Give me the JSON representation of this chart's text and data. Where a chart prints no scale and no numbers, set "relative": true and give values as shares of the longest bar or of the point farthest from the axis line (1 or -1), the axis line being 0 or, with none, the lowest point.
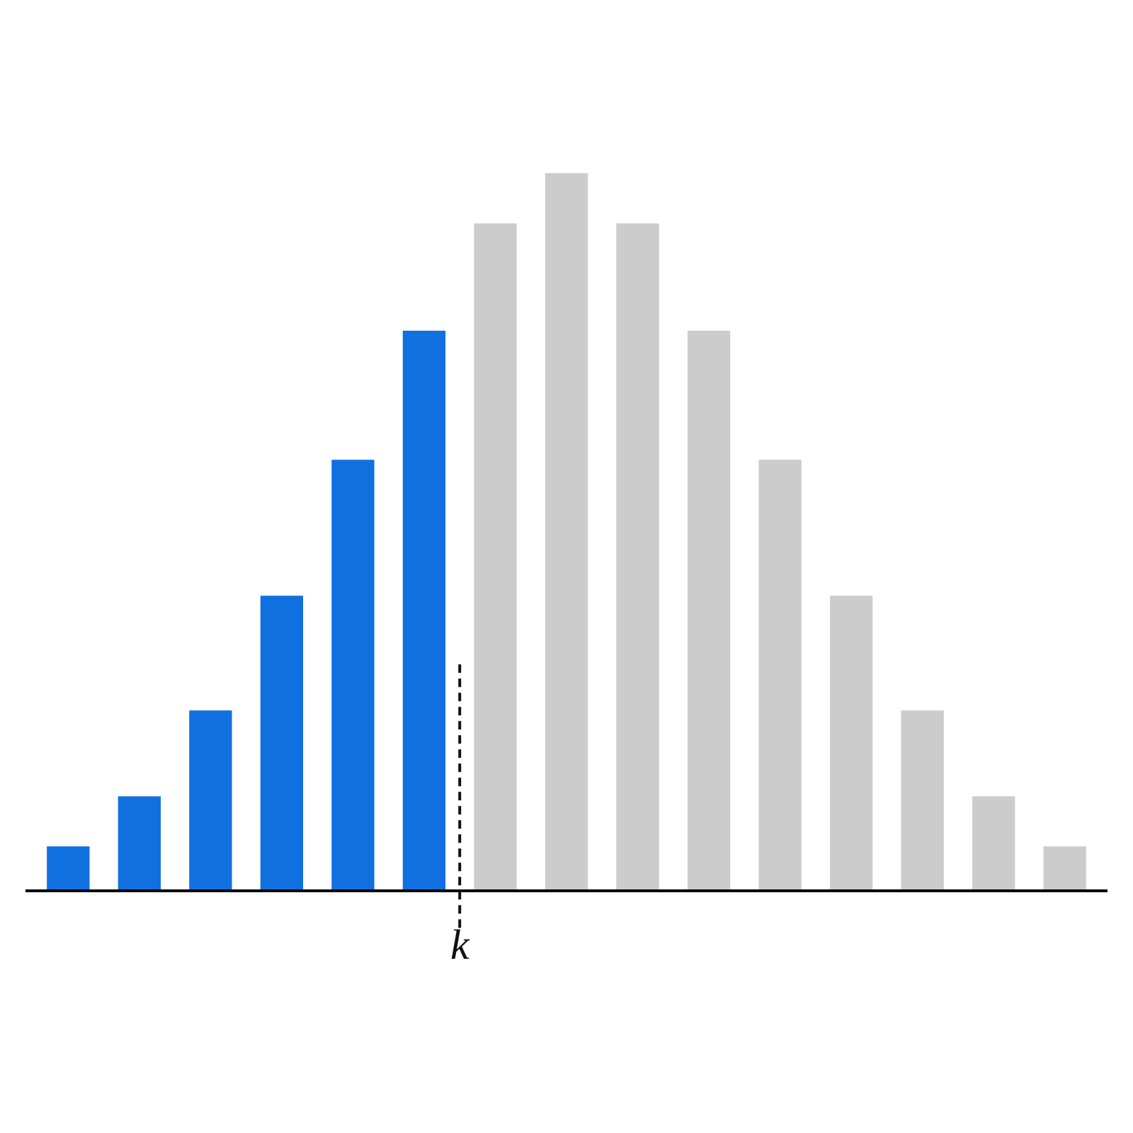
{
  "chart_data": {
    "type": "bar",
    "relative": true,
    "categories": [
      null,
      null,
      null,
      null,
      null,
      null,
      null,
      null,
      null,
      null,
      null,
      null,
      null,
      null,
      null
    ],
    "values": [
      0.06,
      0.13,
      0.25,
      0.41,
      0.6,
      0.78,
      0.93,
      1,
      0.93,
      0.78,
      0.6,
      0.41,
      0.25,
      0.13,
      0.06
    ],
    "colors": [
      "#1170e0",
      "#1170e0",
      "#1170e0",
      "#1170e0",
      "#1170e0",
      "#1170e0",
      "#cccccc",
      "#cccccc",
      "#cccccc",
      "#cccccc",
      "#cccccc",
      "#cccccc",
      "#cccccc",
      "#cccccc",
      "#cccccc"
    ],
    "annotations": [
      "k"
    ]
  }
}
